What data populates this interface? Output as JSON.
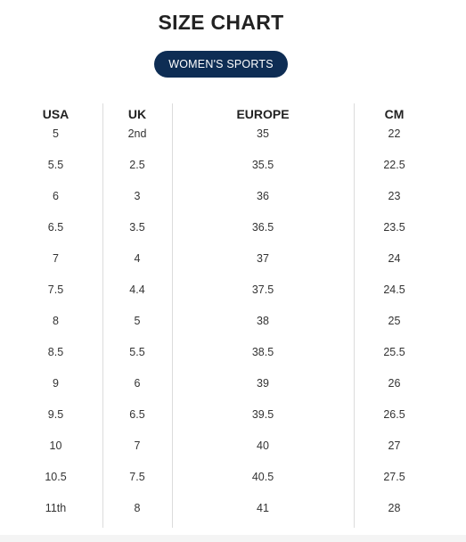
{
  "title": "SIZE CHART",
  "category_label": "WOMEN'S SPORTS",
  "colors": {
    "pill_background": "#0e2d54",
    "pill_text": "#ffffff",
    "divider": "#dcdcdc"
  },
  "table": {
    "headers": [
      "USA",
      "UK",
      "EUROPE",
      "CM"
    ],
    "rows": [
      [
        "5",
        "2nd",
        "35",
        "22"
      ],
      [
        "5.5",
        "2.5",
        "35.5",
        "22.5"
      ],
      [
        "6",
        "3",
        "36",
        "23"
      ],
      [
        "6.5",
        "3.5",
        "36.5",
        "23.5"
      ],
      [
        "7",
        "4",
        "37",
        "24"
      ],
      [
        "7.5",
        "4.4",
        "37.5",
        "24.5"
      ],
      [
        "8",
        "5",
        "38",
        "25"
      ],
      [
        "8.5",
        "5.5",
        "38.5",
        "25.5"
      ],
      [
        "9",
        "6",
        "39",
        "26"
      ],
      [
        "9.5",
        "6.5",
        "39.5",
        "26.5"
      ],
      [
        "10",
        "7",
        "40",
        "27"
      ],
      [
        "10.5",
        "7.5",
        "40.5",
        "27.5"
      ],
      [
        "11th",
        "8",
        "41",
        "28"
      ]
    ]
  }
}
